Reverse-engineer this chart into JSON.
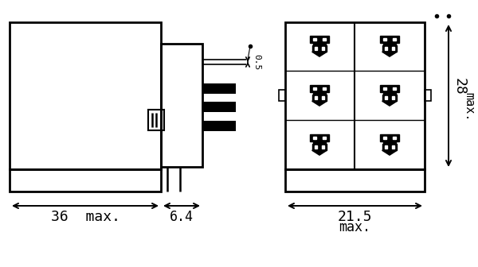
{
  "bg_color": "#ffffff",
  "line_color": "#000000",
  "fig_width": 6.0,
  "fig_height": 3.36,
  "dpi": 100,
  "dim_36_label": "36  max.",
  "dim_64_label": "6.4",
  "dim_215_label": "21.5",
  "dim_max_label": "max.",
  "dim_28_label": "28",
  "dim_28max_label": "max.",
  "dim_05_label": "0.5"
}
